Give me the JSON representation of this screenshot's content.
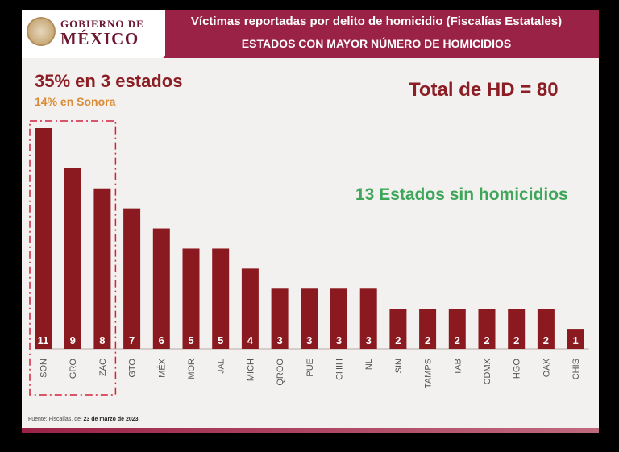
{
  "header": {
    "logo_line1": "GOBIERNO DE",
    "logo_line2": "MÉXICO",
    "title": "Víctimas reportadas por delito de homicidio (Fiscalías Estatales)",
    "subtitle": "ESTADOS CON MAYOR NÚMERO DE HOMICIDIOS"
  },
  "annotations": {
    "concentration": "35% en 3 estados",
    "sonora": "14% en Sonora",
    "total": "Total de HD = 80",
    "no_homicides": "13 Estados sin homicidios"
  },
  "footer": {
    "source_prefix": "Fuente: Fiscalías, del ",
    "source_date": "23 de marzo de 2023."
  },
  "colors": {
    "header": "#9b2247",
    "bar": "#8b1a20",
    "highlight_box": "#d0233a",
    "sonora_text": "#d98b36",
    "green_text": "#3ea659"
  },
  "chart_data": {
    "type": "bar",
    "title": "ESTADOS CON MAYOR NÚMERO DE HOMICIDIOS",
    "xlabel": "",
    "ylabel": "",
    "ylim": [
      0,
      11
    ],
    "grid": false,
    "legend": "none",
    "categories": [
      "SON",
      "GRO",
      "ZAC",
      "GTO",
      "MÉX",
      "MOR",
      "JAL",
      "MICH",
      "QROO",
      "PUE",
      "CHIH",
      "NL",
      "SIN",
      "TAMPS",
      "TAB",
      "CDMX",
      "HGO",
      "OAX",
      "CHIS"
    ],
    "values": [
      11,
      9,
      8,
      7,
      6,
      5,
      5,
      4,
      3,
      3,
      3,
      3,
      2,
      2,
      2,
      2,
      2,
      2,
      1
    ],
    "highlighted_categories": [
      "SON",
      "GRO",
      "ZAC"
    ]
  }
}
